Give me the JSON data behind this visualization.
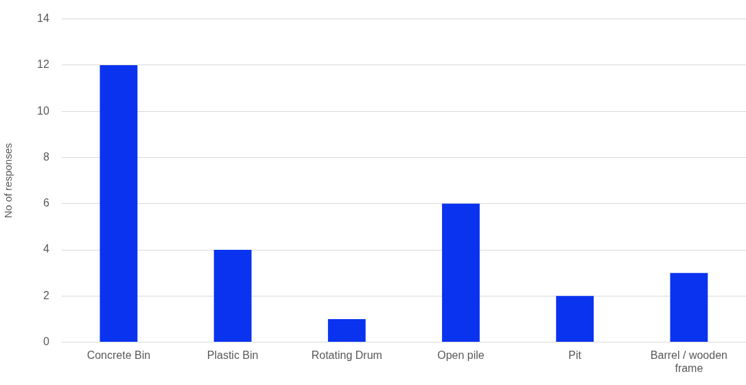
{
  "chart_data": {
    "type": "bar",
    "ylabel": "No of responses",
    "categories": [
      "Concrete Bin",
      "Plastic Bin",
      "Rotating Drum",
      "Open pile",
      "Pit",
      "Barrel / wooden frame"
    ],
    "values": [
      12,
      4,
      1,
      6,
      2,
      3
    ],
    "color": "#0a33f0",
    "ylim": [
      0,
      14
    ],
    "yticks": [
      0,
      2,
      4,
      6,
      8,
      10,
      12,
      14
    ],
    "grid": "y",
    "legend": false
  }
}
